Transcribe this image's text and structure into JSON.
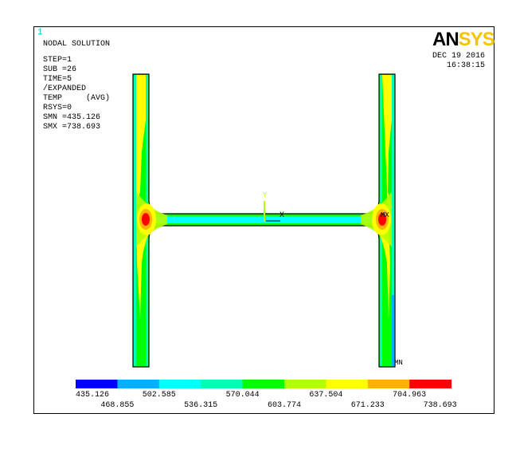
{
  "window_number": "1",
  "title": "NODAL SOLUTION",
  "info": [
    "STEP=1",
    "SUB =26",
    "TIME=5",
    "/EXPANDED",
    "TEMP     (AVG)",
    "RSYS=0",
    "SMN =435.126",
    "SMX =738.693"
  ],
  "logo": {
    "part1": "AN",
    "part2": "SYS"
  },
  "date": "DEC 19 2016",
  "time": "16:38:15",
  "markers": {
    "max": "MX",
    "min": "MN",
    "axis_x": "X",
    "axis_y": "Y"
  },
  "legend": {
    "colors": [
      "#0000FF",
      "#00B2FF",
      "#00FFFF",
      "#00FFB2",
      "#00FF00",
      "#B2FF00",
      "#FFFF00",
      "#FFB200",
      "#FF0000"
    ],
    "labels_bottom_row1": [
      "435.126",
      "502.585",
      "570.044",
      "637.504",
      "704.963"
    ],
    "labels_bottom_row2": [
      "468.855",
      "536.315",
      "603.774",
      "671.233",
      "738.693"
    ]
  }
}
